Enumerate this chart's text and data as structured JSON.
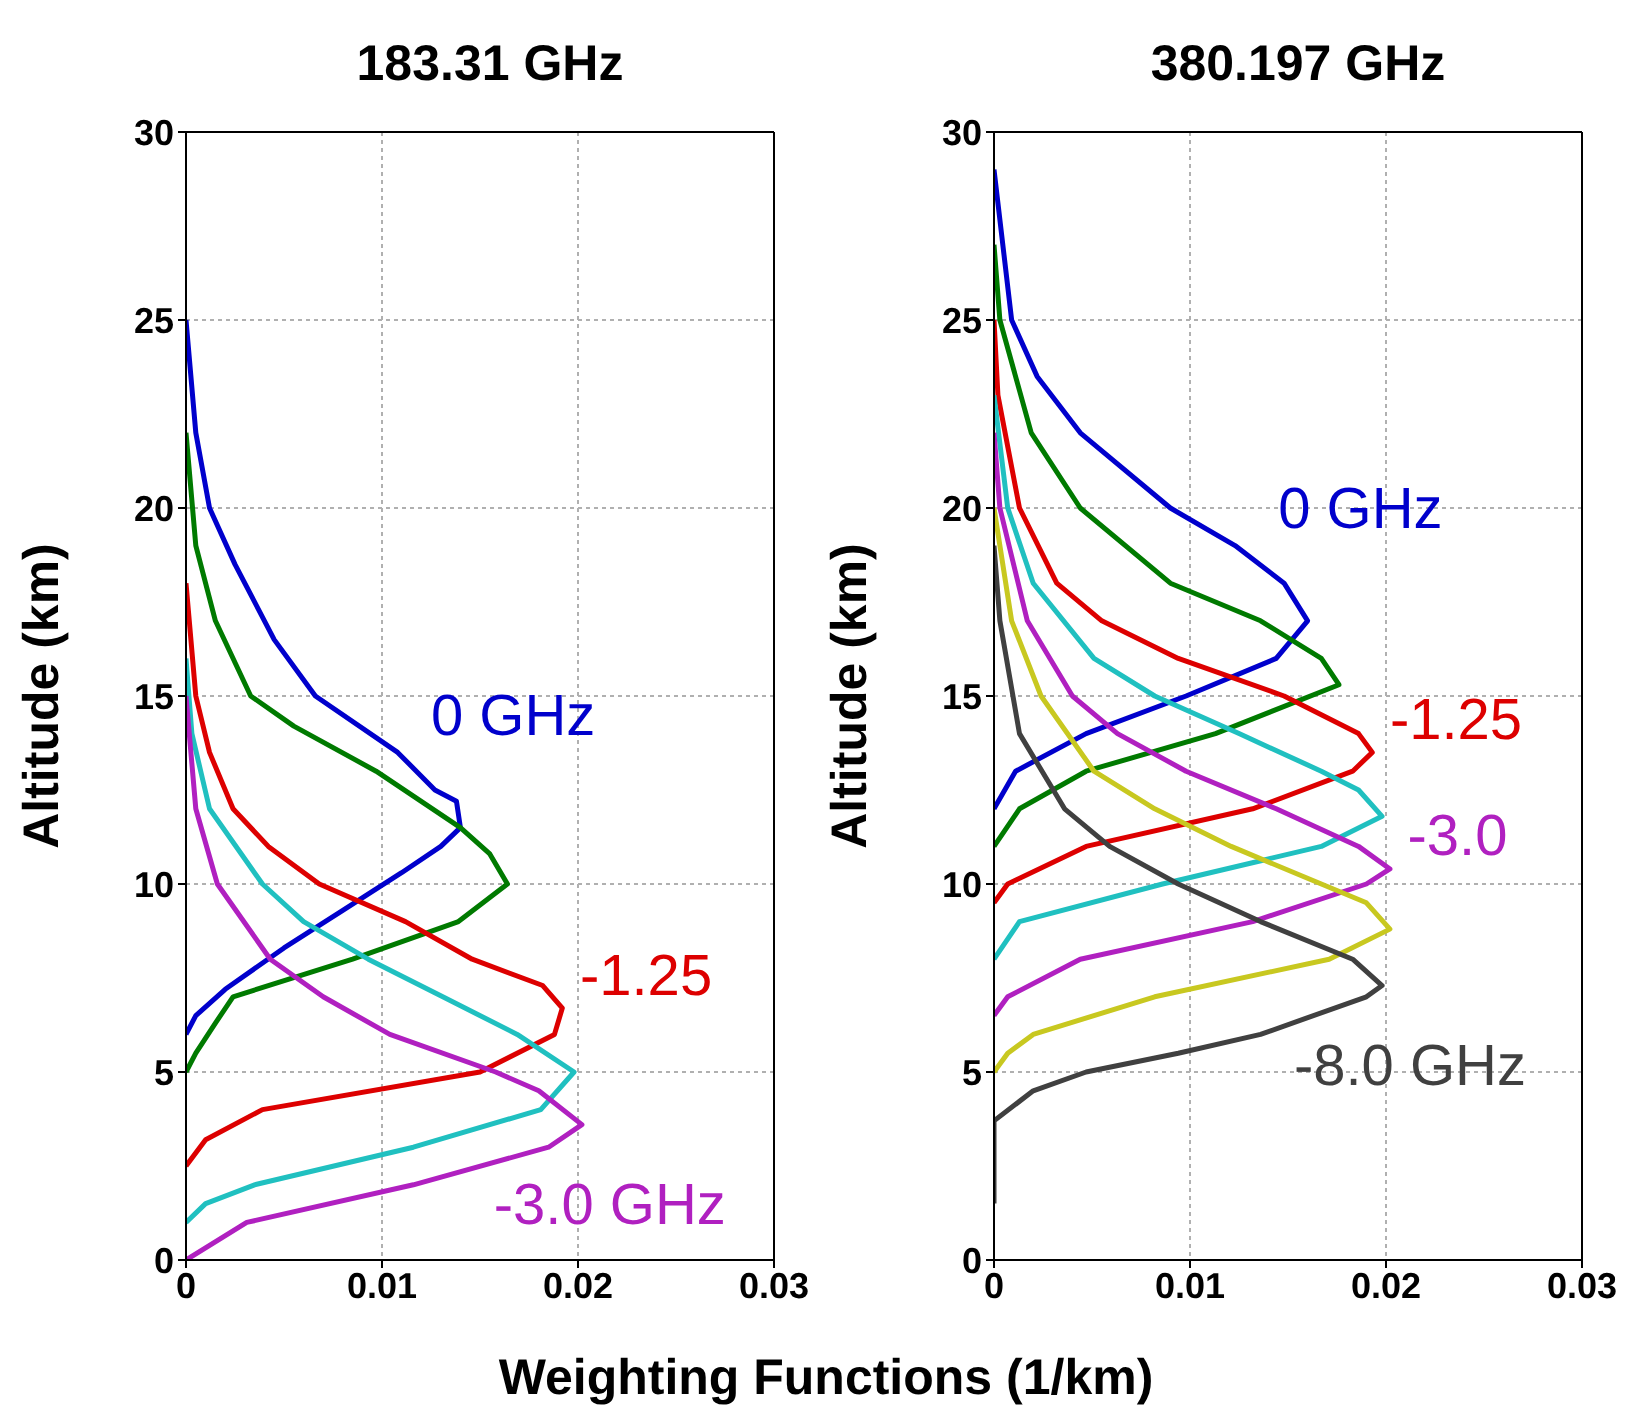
{
  "chart_data": [
    {
      "type": "line",
      "title": "183.31 GHz",
      "ylabel": "Altitude (km)",
      "xlabel": "Weighting Functions (1/km)",
      "xlim": [
        0,
        0.03
      ],
      "xticks": [
        0,
        0.01,
        0.02,
        0.03
      ],
      "ylim": [
        0,
        30
      ],
      "yticks": [
        0,
        5,
        10,
        15,
        20,
        25,
        30
      ],
      "grid": true,
      "marker": "none",
      "line_style": "solid",
      "series": [
        {
          "name": "0 GHz",
          "color": "#0000cc",
          "x": [
            0,
            0.0005,
            0.002,
            0.005,
            0.008,
            0.011,
            0.013,
            0.014,
            0.0138,
            0.0127,
            0.0108,
            0.0066,
            0.0045,
            0.0025,
            0.0012,
            0.0005,
            0
          ],
          "values": [
            6,
            6.5,
            7.2,
            8.3,
            9.3,
            10.3,
            11,
            11.5,
            12.2,
            12.5,
            13.5,
            15,
            16.5,
            18.5,
            20,
            22,
            25
          ]
        },
        {
          "color": "#007a00",
          "x": [
            0,
            0.0005,
            0.0015,
            0.0024,
            0.0085,
            0.0139,
            0.0164,
            0.0155,
            0.014,
            0.0097,
            0.0055,
            0.0033,
            0.0015,
            0.0005,
            0
          ],
          "values": [
            5,
            5.5,
            6.3,
            7,
            8,
            9,
            10,
            10.8,
            11.5,
            13,
            14.2,
            15,
            17,
            19,
            22
          ]
        },
        {
          "name": "-1.25",
          "color": "#dd0000",
          "x": [
            0,
            0.001,
            0.0039,
            0.015,
            0.0188,
            0.0192,
            0.0182,
            0.0146,
            0.0112,
            0.0068,
            0.0042,
            0.0024,
            0.0012,
            0.0005,
            0
          ],
          "values": [
            2.5,
            3.2,
            4,
            5,
            6,
            6.7,
            7.3,
            8,
            9,
            10,
            11,
            12,
            13.5,
            15,
            18
          ]
        },
        {
          "color": "#20c0c0",
          "x": [
            0,
            0.001,
            0.0035,
            0.0116,
            0.0181,
            0.0198,
            0.0169,
            0.0131,
            0.0093,
            0.006,
            0.0039,
            0.0012,
            0.0003,
            0
          ],
          "values": [
            1,
            1.5,
            2,
            3,
            4,
            5,
            6,
            7,
            8,
            9,
            10,
            12,
            14,
            16
          ]
        },
        {
          "name": "-3.0 GHz",
          "color": "#b020c0",
          "x": [
            0,
            0.0031,
            0.0116,
            0.0185,
            0.0202,
            0.018,
            0.0158,
            0.0104,
            0.007,
            0.0043,
            0.0016,
            0.0005,
            0
          ],
          "values": [
            0,
            1,
            2,
            3,
            3.6,
            4.5,
            5,
            6,
            7,
            8,
            10,
            12,
            15
          ]
        }
      ]
    },
    {
      "type": "line",
      "title": "380.197 GHz",
      "ylabel": "Altitude (km)",
      "xlim": [
        0,
        0.03
      ],
      "xticks": [
        0,
        0.01,
        0.02,
        0.03
      ],
      "ylim": [
        0,
        30
      ],
      "yticks": [
        0,
        5,
        10,
        15,
        20,
        25,
        30
      ],
      "grid": true,
      "marker": "none",
      "line_style": "solid",
      "series": [
        {
          "name": "0 GHz",
          "color": "#0000cc",
          "x": [
            0,
            0.0011,
            0.0047,
            0.0098,
            0.0144,
            0.016,
            0.0148,
            0.0123,
            0.009,
            0.0044,
            0.0022,
            0.0009,
            0
          ],
          "values": [
            12,
            13,
            14,
            15,
            16,
            17,
            18,
            19,
            20,
            22,
            23.5,
            25,
            29
          ]
        },
        {
          "color": "#007a00",
          "x": [
            0,
            0.0013,
            0.0047,
            0.0113,
            0.0176,
            0.0167,
            0.0136,
            0.009,
            0.0044,
            0.0019,
            0.0003,
            0
          ],
          "values": [
            11,
            12,
            13,
            14,
            15.3,
            16,
            17,
            18,
            20,
            22,
            25,
            27
          ]
        },
        {
          "name": "-1.25",
          "color": "#dd0000",
          "x": [
            0,
            0.0007,
            0.0047,
            0.0132,
            0.0183,
            0.0193,
            0.0186,
            0.0148,
            0.0094,
            0.0055,
            0.0032,
            0.0013,
            0.0002,
            0
          ],
          "values": [
            9.5,
            10,
            11,
            12,
            13,
            13.5,
            14,
            15,
            16,
            17,
            18,
            20,
            23,
            25
          ]
        },
        {
          "color": "#20c0c0",
          "x": [
            0,
            0.0013,
            0.0086,
            0.0167,
            0.0198,
            0.0186,
            0.0167,
            0.0125,
            0.0082,
            0.0051,
            0.002,
            0.0007,
            0
          ],
          "values": [
            8,
            9,
            10,
            11,
            11.8,
            12.5,
            13,
            14,
            15,
            16,
            18,
            20,
            23
          ]
        },
        {
          "name": "-3.0",
          "color": "#b020c0",
          "x": [
            0,
            0.0007,
            0.0044,
            0.0132,
            0.019,
            0.0202,
            0.0186,
            0.0144,
            0.0098,
            0.0063,
            0.004,
            0.0017,
            0.0003,
            0
          ],
          "values": [
            6.5,
            7,
            8,
            9,
            10,
            10.4,
            11,
            12,
            13,
            14,
            15,
            17,
            20,
            22
          ]
        },
        {
          "color": "#c8c820",
          "x": [
            0,
            0.0007,
            0.002,
            0.0082,
            0.0171,
            0.0202,
            0.019,
            0.0167,
            0.0121,
            0.0082,
            0.0051,
            0.0024,
            0.0009,
            0
          ],
          "values": [
            5,
            5.5,
            6,
            7,
            8,
            8.8,
            9.5,
            10,
            11,
            12,
            13,
            15,
            17,
            20
          ]
        },
        {
          "name": "-8.0 GHz",
          "color": "#404040",
          "x": [
            0,
            0,
            0.002,
            0.0047,
            0.0094,
            0.0136,
            0.019,
            0.0198,
            0.0183,
            0.0136,
            0.0094,
            0.0059,
            0.0036,
            0.0013,
            0.0003,
            0
          ],
          "values": [
            1.5,
            3.7,
            4.5,
            5,
            5.5,
            6,
            7,
            7.3,
            8,
            9,
            10,
            11,
            12,
            14,
            17,
            19
          ]
        }
      ]
    }
  ]
}
